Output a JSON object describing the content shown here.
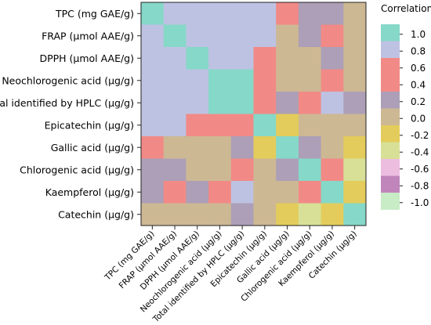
{
  "chart_data": {
    "type": "heatmap",
    "title": "",
    "xlabel": "",
    "ylabel": "",
    "variables": [
      "TPC (mg GAE/g)",
      "FRAP (µmol AAE/g)",
      "DPPH (µmol AAE/g)",
      "Neochlorogenic acid (µg/g)",
      "Total identified by HPLC (µg/g)",
      "Epicatechin (µg/g)",
      "Gallic acid (µg/g)",
      "Chlorogenic acid (µg/g)",
      "Kaempferol (µg/g)",
      "Catechin (µg/g)"
    ],
    "values": [
      [
        1.0,
        0.8,
        0.8,
        0.8,
        0.8,
        0.8,
        0.6,
        0.2,
        0.2,
        0.0
      ],
      [
        0.8,
        1.0,
        0.8,
        0.8,
        0.8,
        0.8,
        0.0,
        0.2,
        0.6,
        0.0
      ],
      [
        0.8,
        0.8,
        1.0,
        0.8,
        0.8,
        0.6,
        0.0,
        0.0,
        0.2,
        0.0
      ],
      [
        0.8,
        0.8,
        0.8,
        1.0,
        1.0,
        0.6,
        0.0,
        0.0,
        0.6,
        0.0
      ],
      [
        0.8,
        0.8,
        0.8,
        1.0,
        1.0,
        0.6,
        0.2,
        0.6,
        0.8,
        0.2
      ],
      [
        0.8,
        0.8,
        0.6,
        0.6,
        0.6,
        1.0,
        -0.2,
        0.0,
        0.0,
        0.0
      ],
      [
        0.6,
        0.0,
        0.0,
        0.0,
        0.2,
        -0.2,
        1.0,
        0.2,
        0.0,
        -0.2
      ],
      [
        0.2,
        0.2,
        0.0,
        0.0,
        0.6,
        0.0,
        0.2,
        1.0,
        0.6,
        -0.4
      ],
      [
        0.2,
        0.6,
        0.2,
        0.6,
        0.8,
        0.0,
        0.0,
        0.6,
        1.0,
        -0.2
      ],
      [
        0.0,
        0.0,
        0.0,
        0.0,
        0.2,
        0.0,
        -0.2,
        -0.4,
        -0.2,
        1.0
      ]
    ],
    "color_scale": {
      "title": "Correlation",
      "ticks": [
        "1.0",
        "0.8",
        "0.6",
        "0.4",
        "0.2",
        "0.0",
        "-0.2",
        "-0.4",
        "-0.6",
        "-0.8",
        "-1.0"
      ],
      "stops": [
        {
          "value": 1.0,
          "color": "#86d8c8"
        },
        {
          "value": 0.8,
          "color": "#bec2e2"
        },
        {
          "value": 0.6,
          "color": "#f18a86"
        },
        {
          "value": 0.4,
          "color": "#f18a86"
        },
        {
          "value": 0.2,
          "color": "#ac9fb7"
        },
        {
          "value": 0.0,
          "color": "#cdb894"
        },
        {
          "value": -0.2,
          "color": "#e3cc5b"
        },
        {
          "value": -0.4,
          "color": "#d7e096"
        },
        {
          "value": -0.6,
          "color": "#edbde0"
        },
        {
          "value": -0.8,
          "color": "#c086bc"
        },
        {
          "value": -1.0,
          "color": "#c8ecc6"
        }
      ]
    },
    "legend_position": "right",
    "grid": false
  }
}
